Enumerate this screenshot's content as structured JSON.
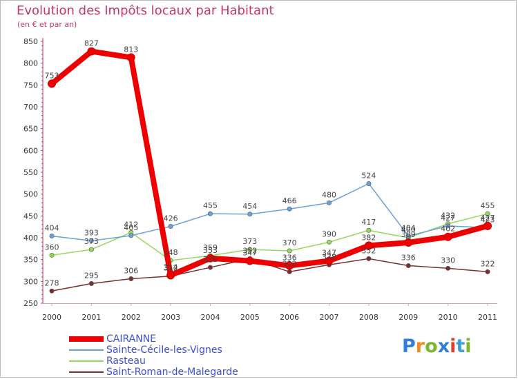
{
  "chart_data": {
    "type": "line",
    "title": "Evolution des Impôts locaux par Habitant",
    "subtitle": "(en € et par an)",
    "xlabel": "",
    "ylabel": "",
    "x": [
      "2000",
      "2001",
      "2002",
      "2003",
      "2004",
      "2005",
      "2006",
      "2007",
      "2008",
      "2009",
      "2010",
      "2011"
    ],
    "yticks": [
      250,
      300,
      350,
      400,
      450,
      500,
      550,
      600,
      650,
      700,
      750,
      800,
      850
    ],
    "ylim": [
      250,
      850
    ],
    "grid": false,
    "legend_position": "bottom-left",
    "series": [
      {
        "name": "CAIRANNE",
        "color": "#ee0000",
        "values": [
          753,
          827,
          813,
          314,
          353,
          347,
          336,
          347,
          382,
          389,
          402,
          427
        ],
        "labels": [
          "753",
          "827",
          "813",
          "314",
          "353",
          "347",
          "336",
          "347",
          "382",
          "389",
          "402",
          "427"
        ]
      },
      {
        "name": "Sainte-Cécile-les-Vignes",
        "color": "#6a9fd8",
        "values": [
          404,
          393,
          405,
          426,
          455,
          454,
          466,
          480,
          524,
          404,
          427,
          423
        ],
        "labels": [
          "404",
          "393",
          "405",
          "426",
          "455",
          "454",
          "466",
          "480",
          "524",
          "404",
          "427",
          "423"
        ]
      },
      {
        "name": "Rasteau",
        "color": "#93d95a",
        "values": [
          360,
          373,
          412,
          348,
          359,
          373,
          370,
          390,
          417,
          400,
          432,
          455
        ],
        "labels": [
          "360",
          "373",
          "412",
          "348",
          "359",
          "373",
          "370",
          "390",
          "417",
          "400",
          "432",
          "455"
        ]
      },
      {
        "name": "Saint-Roman-de-Malegarde",
        "color": "#7a2e2e",
        "values": [
          278,
          295,
          306,
          312,
          332,
          352,
          322,
          338,
          352,
          336,
          330,
          322
        ],
        "labels": [
          "278",
          "295",
          "306",
          "312",
          "332",
          "352",
          "322",
          "338",
          "352",
          "336",
          "330",
          "322"
        ]
      }
    ]
  },
  "logo": {
    "letters": [
      "P",
      "r",
      "o",
      "x",
      "i",
      "t",
      "i"
    ],
    "text": "Proxiti"
  }
}
